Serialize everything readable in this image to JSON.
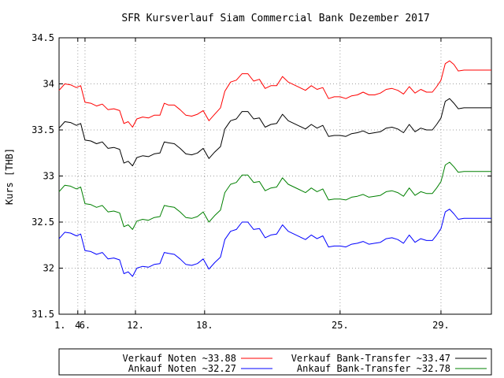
{
  "chart_data": {
    "type": "line",
    "title": "SFR Kursverlauf Siam Commercial Bank Dezember 2017",
    "xlabel": "",
    "ylabel": "Kurs [THB]",
    "ylim": [
      31.5,
      34.5
    ],
    "xlim": [
      1,
      31
    ],
    "grid": true,
    "legend_placement": "bottom",
    "x_ticks": [
      {
        "value": 1,
        "label": "1."
      },
      {
        "value": 2.3,
        "label": "4"
      },
      {
        "value": 2.8,
        "label": "6."
      },
      {
        "value": 6.3,
        "label": "12."
      },
      {
        "value": 11.1,
        "label": "18."
      },
      {
        "value": 20.5,
        "label": "25."
      },
      {
        "value": 27.5,
        "label": "29."
      }
    ],
    "y_ticks": [
      {
        "value": 31.5,
        "label": "31.5"
      },
      {
        "value": 32,
        "label": "32"
      },
      {
        "value": 32.5,
        "label": "32.5"
      },
      {
        "value": 33,
        "label": "33"
      },
      {
        "value": 33.5,
        "label": "33.5"
      },
      {
        "value": 34,
        "label": "34"
      },
      {
        "value": 34.5,
        "label": "34.5"
      }
    ],
    "x": [
      1,
      1.4,
      1.8,
      2.2,
      2.5,
      2.8,
      3.2,
      3.6,
      4,
      4.4,
      4.8,
      5.2,
      5.5,
      5.8,
      6.1,
      6.4,
      6.8,
      7.2,
      7.6,
      8,
      8.3,
      8.6,
      9,
      9.4,
      9.8,
      10.2,
      10.6,
      11,
      11.4,
      11.8,
      12.2,
      12.5,
      12.9,
      13.3,
      13.7,
      14.1,
      14.5,
      14.9,
      15.3,
      15.7,
      16.1,
      16.5,
      16.9,
      17.3,
      17.7,
      18.1,
      18.5,
      18.9,
      19.3,
      19.7,
      20.1,
      20.5,
      20.9,
      21.3,
      21.7,
      22.1,
      22.5,
      22.9,
      23.3,
      23.7,
      24.1,
      24.5,
      24.9,
      25.3,
      25.7,
      26.1,
      26.5,
      26.9,
      27.2,
      27.5,
      27.8,
      28.1,
      28.4,
      28.7,
      29.1,
      29.5,
      29.9,
      30.3,
      31
    ],
    "series": [
      {
        "name": "Verkauf Noten ~33.88",
        "color": "#ff0000",
        "values": [
          33.93,
          34.0,
          33.99,
          33.96,
          33.98,
          33.8,
          33.79,
          33.76,
          33.78,
          33.72,
          33.73,
          33.71,
          33.57,
          33.59,
          33.53,
          33.62,
          33.64,
          33.63,
          33.66,
          33.66,
          33.79,
          33.77,
          33.77,
          33.72,
          33.66,
          33.65,
          33.67,
          33.71,
          33.6,
          33.67,
          33.74,
          33.92,
          34.02,
          34.04,
          34.11,
          34.11,
          34.03,
          34.05,
          33.95,
          33.98,
          33.98,
          34.08,
          34.02,
          33.99,
          33.96,
          33.93,
          33.98,
          33.94,
          33.96,
          33.84,
          33.86,
          33.86,
          33.84,
          33.87,
          33.88,
          33.91,
          33.88,
          33.88,
          33.9,
          33.94,
          33.95,
          33.93,
          33.89,
          33.97,
          33.9,
          33.94,
          33.91,
          33.91,
          33.97,
          34.04,
          34.22,
          34.25,
          34.21,
          34.14,
          34.15,
          34.15,
          34.15,
          34.15,
          34.15
        ]
      },
      {
        "name": "Verkauf Bank-Transfer ~33.47",
        "color": "#000000",
        "values": [
          33.52,
          33.59,
          33.58,
          33.55,
          33.57,
          33.39,
          33.38,
          33.35,
          33.37,
          33.3,
          33.31,
          33.29,
          33.14,
          33.16,
          33.11,
          33.2,
          33.22,
          33.21,
          33.24,
          33.25,
          33.37,
          33.36,
          33.35,
          33.3,
          33.24,
          33.23,
          33.25,
          33.3,
          33.19,
          33.26,
          33.32,
          33.51,
          33.6,
          33.62,
          33.7,
          33.7,
          33.62,
          33.63,
          33.53,
          33.56,
          33.57,
          33.67,
          33.6,
          33.57,
          33.54,
          33.51,
          33.56,
          33.52,
          33.55,
          33.43,
          33.44,
          33.44,
          33.43,
          33.46,
          33.47,
          33.49,
          33.46,
          33.47,
          33.48,
          33.52,
          33.53,
          33.51,
          33.47,
          33.56,
          33.48,
          33.52,
          33.5,
          33.5,
          33.56,
          33.63,
          33.81,
          33.84,
          33.79,
          33.73,
          33.74,
          33.74,
          33.74,
          33.74,
          33.74
        ]
      },
      {
        "name": "Ankauf Bank-Transfer ~32.78",
        "color": "#008000",
        "values": [
          32.83,
          32.9,
          32.89,
          32.86,
          32.88,
          32.7,
          32.69,
          32.66,
          32.68,
          32.61,
          32.62,
          32.6,
          32.45,
          32.47,
          32.42,
          32.51,
          32.53,
          32.52,
          32.55,
          32.56,
          32.68,
          32.67,
          32.66,
          32.61,
          32.55,
          32.54,
          32.56,
          32.61,
          32.5,
          32.57,
          32.63,
          32.82,
          32.91,
          32.93,
          33.01,
          33.01,
          32.93,
          32.94,
          32.84,
          32.87,
          32.88,
          32.98,
          32.91,
          32.88,
          32.85,
          32.82,
          32.87,
          32.83,
          32.86,
          32.74,
          32.75,
          32.75,
          32.74,
          32.77,
          32.78,
          32.8,
          32.77,
          32.78,
          32.79,
          32.83,
          32.84,
          32.82,
          32.78,
          32.87,
          32.79,
          32.83,
          32.81,
          32.81,
          32.87,
          32.94,
          33.12,
          33.15,
          33.1,
          33.04,
          33.05,
          33.05,
          33.05,
          33.05,
          33.05
        ]
      },
      {
        "name": "Ankauf Noten ~32.27",
        "color": "#0000ff",
        "values": [
          32.32,
          32.39,
          32.38,
          32.35,
          32.37,
          32.19,
          32.18,
          32.15,
          32.17,
          32.1,
          32.11,
          32.09,
          31.94,
          31.96,
          31.91,
          32.0,
          32.02,
          32.01,
          32.04,
          32.05,
          32.17,
          32.16,
          32.15,
          32.1,
          32.04,
          32.03,
          32.05,
          32.1,
          31.99,
          32.06,
          32.12,
          32.31,
          32.4,
          32.42,
          32.5,
          32.5,
          32.42,
          32.43,
          32.33,
          32.36,
          32.37,
          32.47,
          32.4,
          32.37,
          32.34,
          32.31,
          32.36,
          32.32,
          32.35,
          32.23,
          32.24,
          32.24,
          32.23,
          32.26,
          32.27,
          32.29,
          32.26,
          32.27,
          32.28,
          32.32,
          32.33,
          32.31,
          32.27,
          32.36,
          32.28,
          32.32,
          32.3,
          32.3,
          32.36,
          32.43,
          32.61,
          32.64,
          32.59,
          32.53,
          32.54,
          32.54,
          32.54,
          32.54,
          32.54
        ]
      }
    ],
    "legend": [
      {
        "label": "Verkauf Noten ~33.88",
        "color": "#ff0000"
      },
      {
        "label": "Verkauf Bank-Transfer ~33.47",
        "color": "#000000"
      },
      {
        "label": "Ankauf Noten ~32.27",
        "color": "#0000ff"
      },
      {
        "label": "Ankauf Bank-Transfer ~32.78",
        "color": "#008000"
      }
    ]
  }
}
